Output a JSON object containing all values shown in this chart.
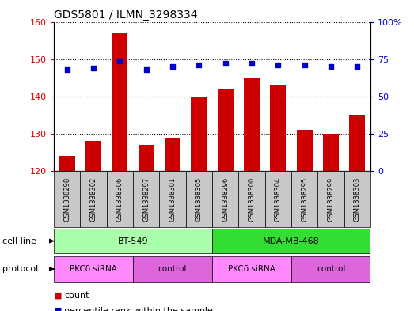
{
  "title": "GDS5801 / ILMN_3298334",
  "samples": [
    "GSM1338298",
    "GSM1338302",
    "GSM1338306",
    "GSM1338297",
    "GSM1338301",
    "GSM1338305",
    "GSM1338296",
    "GSM1338300",
    "GSM1338304",
    "GSM1338295",
    "GSM1338299",
    "GSM1338303"
  ],
  "counts": [
    124,
    128,
    157,
    127,
    129,
    140,
    142,
    145,
    143,
    131,
    130,
    135
  ],
  "percentiles": [
    68,
    69,
    74,
    68,
    70,
    71,
    72,
    72,
    71,
    71,
    70,
    70
  ],
  "ylim_left": [
    120,
    160
  ],
  "ylim_right": [
    0,
    100
  ],
  "yticks_left": [
    120,
    130,
    140,
    150,
    160
  ],
  "yticks_right": [
    0,
    25,
    50,
    75,
    100
  ],
  "bar_color": "#cc0000",
  "dot_color": "#0000cc",
  "cell_lines": [
    {
      "label": "BT-549",
      "start": 0,
      "end": 6,
      "color": "#aaffaa"
    },
    {
      "label": "MDA-MB-468",
      "start": 6,
      "end": 12,
      "color": "#33dd33"
    }
  ],
  "protocols": [
    {
      "label": "PKCδ siRNA",
      "start": 0,
      "end": 3,
      "color": "#ff88ff"
    },
    {
      "label": "control",
      "start": 3,
      "end": 6,
      "color": "#dd66dd"
    },
    {
      "label": "PKCδ siRNA",
      "start": 6,
      "end": 9,
      "color": "#ff88ff"
    },
    {
      "label": "control",
      "start": 9,
      "end": 12,
      "color": "#dd66dd"
    }
  ],
  "legend_count_color": "#cc0000",
  "legend_pct_color": "#0000cc",
  "sample_box_color": "#c8c8c8",
  "plot_bg_color": "#ffffff"
}
